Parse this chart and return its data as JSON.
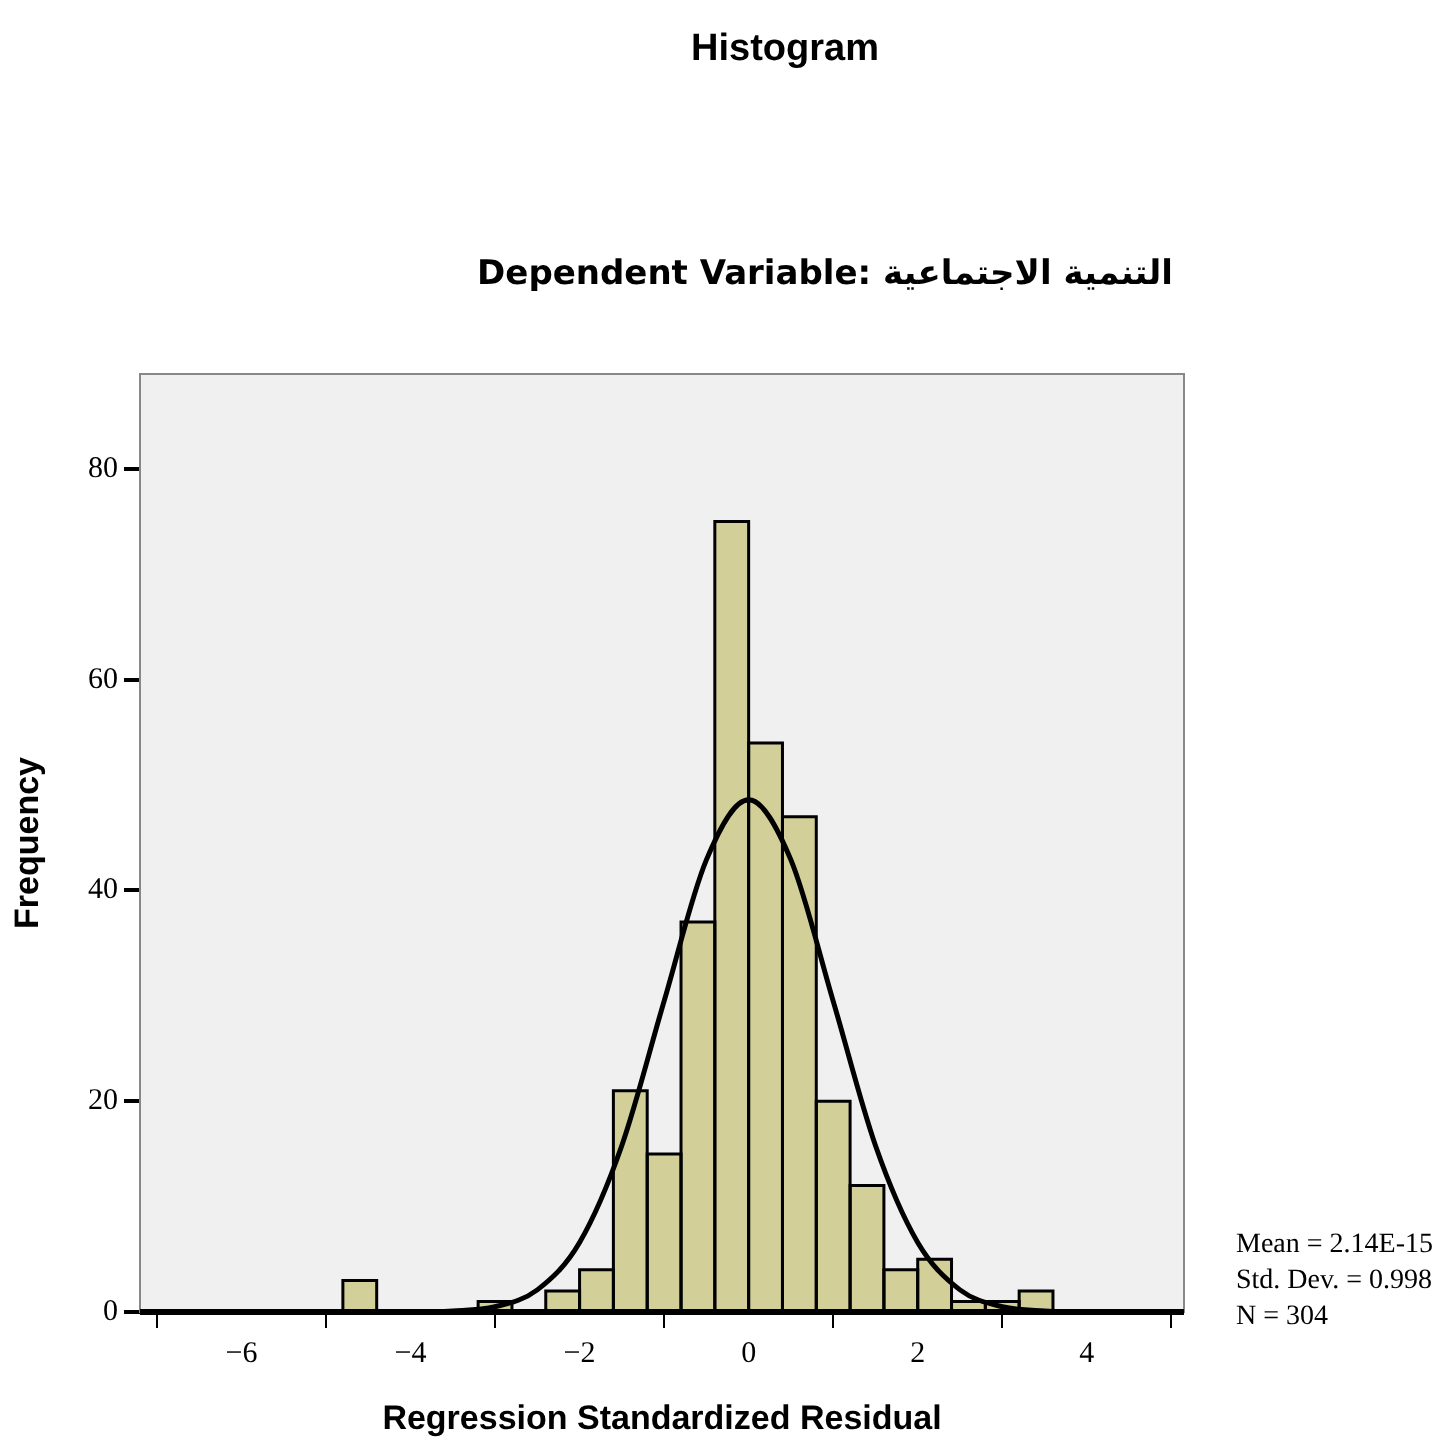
{
  "chart_data": {
    "type": "histogram",
    "title": "Histogram",
    "subtitle": "Dependent Variable: التنمية الاجتماعية",
    "xlabel": "Regression Standardized Residual",
    "ylabel": "Frequency",
    "bins": [
      -4.8,
      -4.4,
      -4.0,
      -3.6,
      -3.2,
      -2.8,
      -2.4,
      -2.0,
      -1.6,
      -1.2,
      -0.8,
      -0.4,
      0,
      0.4,
      0.8,
      1.2,
      1.6,
      2.0,
      2.4,
      2.8,
      3.2,
      3.6
    ],
    "values": [
      3,
      0,
      0,
      0,
      1,
      0,
      2,
      4,
      21,
      15,
      37,
      75,
      54,
      47,
      20,
      12,
      4,
      5,
      1,
      1,
      2
    ],
    "color": "#d3cf99",
    "series": [
      {
        "type": "line",
        "color": "#000000",
        "x": [
          -7.2,
          -4,
          -3.5,
          -3,
          -2.5,
          -2,
          -1.5,
          -1,
          -0.5,
          0,
          0.5,
          1,
          1.5,
          2,
          2.5,
          3,
          3.5,
          4,
          5.15
        ],
        "values": [
          0,
          0,
          0.1,
          0.5,
          2.1,
          6.6,
          15.8,
          29.5,
          42.9,
          48.6,
          42.9,
          29.5,
          15.8,
          6.6,
          2.1,
          0.5,
          0.1,
          0,
          0
        ]
      }
    ],
    "xlim": [
      -7.2,
      5.15
    ],
    "xticks": [
      -6,
      -4,
      -2,
      0,
      2,
      4
    ],
    "ylim": [
      0,
      89
    ],
    "yticks": [
      0,
      20,
      40,
      60,
      80
    ],
    "annotations": [
      "Mean = 2.14E-15",
      "Std. Dev. = 0.998",
      "N = 304"
    ]
  }
}
